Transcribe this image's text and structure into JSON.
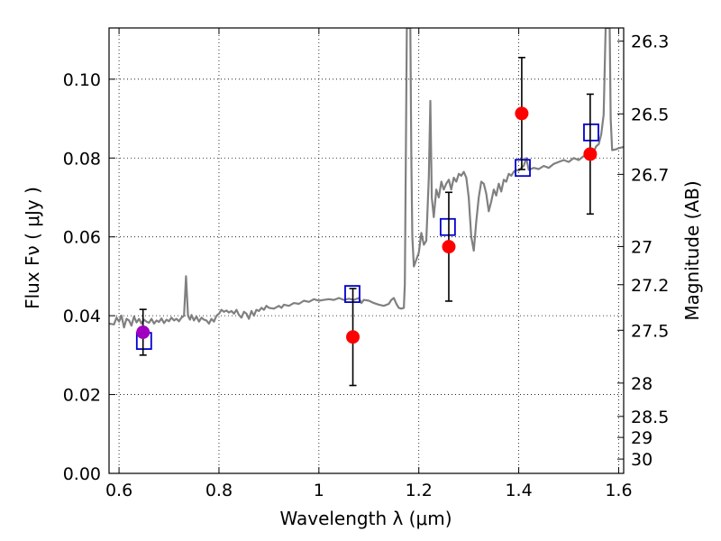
{
  "chart_data": {
    "type": "scatter",
    "title": "",
    "xlabel": "Wavelength  λ (μm)",
    "ylabel": "Flux  Fν  ( μJy )",
    "y2label": "Magnitude (AB)",
    "xlim": [
      0.58,
      1.61
    ],
    "ylim": [
      0.0,
      0.113
    ],
    "x_ticks": [
      0.6,
      0.8,
      1.0,
      1.2,
      1.4,
      1.6
    ],
    "x_tick_labels": [
      "0.6",
      "0.8",
      "1",
      "1.2",
      "1.4",
      "1.6"
    ],
    "y_ticks": [
      0.0,
      0.02,
      0.04,
      0.06,
      0.08,
      0.1
    ],
    "y_tick_labels": [
      "0.00",
      "0.02",
      "0.04",
      "0.06",
      "0.08",
      "0.10"
    ],
    "y2_ticks": [
      {
        "label": "26.3",
        "mag": 26.3
      },
      {
        "label": "26.5",
        "mag": 26.5
      },
      {
        "label": "26.7",
        "mag": 26.7
      },
      {
        "label": "27",
        "mag": 27.0
      },
      {
        "label": "27.2",
        "mag": 27.2
      },
      {
        "label": "27.5",
        "mag": 27.5
      },
      {
        "label": "28",
        "mag": 28.0
      },
      {
        "label": "28.5",
        "mag": 28.5
      },
      {
        "label": "29",
        "mag": 29.0
      },
      {
        "label": "30",
        "mag": 30.0
      }
    ],
    "grid": true,
    "colors": {
      "spectrum": "#808080",
      "observed": "#ff0000",
      "model": "#0000cc",
      "highlight": "#a000c0",
      "errorbar": "#000000"
    },
    "series": [
      {
        "kind": "line",
        "points": [
          [
            0.58,
            0.038
          ],
          [
            0.59,
            0.0378
          ],
          [
            0.595,
            0.0395
          ],
          [
            0.6,
            0.0385
          ],
          [
            0.605,
            0.04
          ],
          [
            0.61,
            0.037
          ],
          [
            0.615,
            0.0392
          ],
          [
            0.62,
            0.0388
          ],
          [
            0.625,
            0.0375
          ],
          [
            0.63,
            0.0398
          ],
          [
            0.635,
            0.0383
          ],
          [
            0.64,
            0.0392
          ],
          [
            0.645,
            0.038
          ],
          [
            0.65,
            0.039
          ],
          [
            0.655,
            0.0385
          ],
          [
            0.66,
            0.0382
          ],
          [
            0.665,
            0.0392
          ],
          [
            0.67,
            0.038
          ],
          [
            0.675,
            0.0388
          ],
          [
            0.68,
            0.0384
          ],
          [
            0.685,
            0.0393
          ],
          [
            0.69,
            0.0381
          ],
          [
            0.695,
            0.039
          ],
          [
            0.7,
            0.0386
          ],
          [
            0.705,
            0.0395
          ],
          [
            0.71,
            0.0388
          ],
          [
            0.715,
            0.0392
          ],
          [
            0.72,
            0.0386
          ],
          [
            0.725,
            0.0395
          ],
          [
            0.73,
            0.04
          ],
          [
            0.734,
            0.05
          ],
          [
            0.738,
            0.04
          ],
          [
            0.742,
            0.039
          ],
          [
            0.745,
            0.0402
          ],
          [
            0.75,
            0.0388
          ],
          [
            0.755,
            0.0398
          ],
          [
            0.76,
            0.0385
          ],
          [
            0.765,
            0.0395
          ],
          [
            0.77,
            0.039
          ],
          [
            0.775,
            0.0388
          ],
          [
            0.78,
            0.038
          ],
          [
            0.785,
            0.0392
          ],
          [
            0.79,
            0.0385
          ],
          [
            0.795,
            0.04
          ],
          [
            0.8,
            0.0405
          ],
          [
            0.805,
            0.0415
          ],
          [
            0.81,
            0.041
          ],
          [
            0.815,
            0.0413
          ],
          [
            0.82,
            0.0408
          ],
          [
            0.825,
            0.0412
          ],
          [
            0.83,
            0.0405
          ],
          [
            0.835,
            0.0415
          ],
          [
            0.84,
            0.0402
          ],
          [
            0.845,
            0.0395
          ],
          [
            0.85,
            0.041
          ],
          [
            0.855,
            0.0405
          ],
          [
            0.86,
            0.0392
          ],
          [
            0.865,
            0.0412
          ],
          [
            0.87,
            0.04
          ],
          [
            0.875,
            0.0415
          ],
          [
            0.88,
            0.0412
          ],
          [
            0.885,
            0.042
          ],
          [
            0.89,
            0.0415
          ],
          [
            0.895,
            0.0425
          ],
          [
            0.9,
            0.042
          ],
          [
            0.91,
            0.0418
          ],
          [
            0.92,
            0.0425
          ],
          [
            0.925,
            0.042
          ],
          [
            0.93,
            0.0428
          ],
          [
            0.94,
            0.0425
          ],
          [
            0.95,
            0.0432
          ],
          [
            0.96,
            0.043
          ],
          [
            0.97,
            0.0438
          ],
          [
            0.98,
            0.0435
          ],
          [
            0.99,
            0.0442
          ],
          [
            1.0,
            0.0438
          ],
          [
            1.01,
            0.044
          ],
          [
            1.02,
            0.0442
          ],
          [
            1.03,
            0.044
          ],
          [
            1.04,
            0.0445
          ],
          [
            1.05,
            0.044
          ],
          [
            1.06,
            0.0443
          ],
          [
            1.07,
            0.044
          ],
          [
            1.08,
            0.0445
          ],
          [
            1.085,
            0.0432
          ],
          [
            1.09,
            0.044
          ],
          [
            1.1,
            0.0438
          ],
          [
            1.11,
            0.0432
          ],
          [
            1.12,
            0.0428
          ],
          [
            1.13,
            0.0425
          ],
          [
            1.14,
            0.043
          ],
          [
            1.145,
            0.044
          ],
          [
            1.15,
            0.0445
          ],
          [
            1.155,
            0.043
          ],
          [
            1.16,
            0.042
          ],
          [
            1.165,
            0.0418
          ],
          [
            1.17,
            0.042
          ],
          [
            1.172,
            0.048
          ],
          [
            1.174,
            0.08
          ],
          [
            1.176,
            0.113
          ],
          [
            1.183,
            0.113
          ],
          [
            1.185,
            0.08
          ],
          [
            1.187,
            0.06
          ],
          [
            1.19,
            0.0525
          ],
          [
            1.2,
            0.056
          ],
          [
            1.205,
            0.061
          ],
          [
            1.21,
            0.058
          ],
          [
            1.215,
            0.059
          ],
          [
            1.22,
            0.075
          ],
          [
            1.223,
            0.0945
          ],
          [
            1.226,
            0.07
          ],
          [
            1.23,
            0.065
          ],
          [
            1.235,
            0.072
          ],
          [
            1.24,
            0.07
          ],
          [
            1.245,
            0.074
          ],
          [
            1.25,
            0.072
          ],
          [
            1.255,
            0.0735
          ],
          [
            1.26,
            0.0745
          ],
          [
            1.265,
            0.072
          ],
          [
            1.27,
            0.075
          ],
          [
            1.275,
            0.074
          ],
          [
            1.28,
            0.076
          ],
          [
            1.285,
            0.0755
          ],
          [
            1.29,
            0.0765
          ],
          [
            1.295,
            0.075
          ],
          [
            1.3,
            0.07
          ],
          [
            1.305,
            0.06
          ],
          [
            1.31,
            0.0565
          ],
          [
            1.315,
            0.064
          ],
          [
            1.32,
            0.07
          ],
          [
            1.325,
            0.074
          ],
          [
            1.33,
            0.0735
          ],
          [
            1.335,
            0.071
          ],
          [
            1.34,
            0.0665
          ],
          [
            1.345,
            0.069
          ],
          [
            1.35,
            0.072
          ],
          [
            1.355,
            0.0705
          ],
          [
            1.36,
            0.0735
          ],
          [
            1.365,
            0.0715
          ],
          [
            1.37,
            0.0745
          ],
          [
            1.375,
            0.074
          ],
          [
            1.38,
            0.076
          ],
          [
            1.385,
            0.0755
          ],
          [
            1.39,
            0.0765
          ],
          [
            1.395,
            0.077
          ],
          [
            1.4,
            0.0768
          ],
          [
            1.405,
            0.0775
          ],
          [
            1.41,
            0.078
          ],
          [
            1.415,
            0.08
          ],
          [
            1.42,
            0.077
          ],
          [
            1.43,
            0.0775
          ],
          [
            1.44,
            0.0772
          ],
          [
            1.45,
            0.078
          ],
          [
            1.46,
            0.0775
          ],
          [
            1.47,
            0.0785
          ],
          [
            1.48,
            0.079
          ],
          [
            1.49,
            0.0795
          ],
          [
            1.5,
            0.079
          ],
          [
            1.51,
            0.08
          ],
          [
            1.52,
            0.0795
          ],
          [
            1.53,
            0.0805
          ],
          [
            1.54,
            0.081
          ],
          [
            1.545,
            0.0812
          ],
          [
            1.55,
            0.0815
          ],
          [
            1.555,
            0.083
          ],
          [
            1.56,
            0.0835
          ],
          [
            1.565,
            0.086
          ],
          [
            1.57,
            0.091
          ],
          [
            1.574,
            0.113
          ],
          [
            1.582,
            0.113
          ],
          [
            1.584,
            0.09
          ],
          [
            1.587,
            0.082
          ],
          [
            1.595,
            0.0822
          ],
          [
            1.6,
            0.0825
          ],
          [
            1.61,
            0.0828
          ]
        ]
      },
      {
        "kind": "errorbar",
        "points": [
          {
            "x": 0.648,
            "y": 0.0358,
            "yerr": 0.0058
          },
          {
            "x": 1.068,
            "y": 0.0346,
            "yerr": 0.0123
          },
          {
            "x": 1.26,
            "y": 0.0575,
            "yerr": 0.0138
          },
          {
            "x": 1.406,
            "y": 0.0913,
            "yerr": 0.0142
          },
          {
            "x": 1.543,
            "y": 0.081,
            "yerr": 0.0152
          }
        ]
      },
      {
        "kind": "markers",
        "points": [
          {
            "x": 0.65,
            "y": 0.0336
          },
          {
            "x": 1.067,
            "y": 0.0455
          },
          {
            "x": 1.258,
            "y": 0.0625
          },
          {
            "x": 1.408,
            "y": 0.0775
          },
          {
            "x": 1.545,
            "y": 0.0865
          }
        ]
      }
    ]
  }
}
